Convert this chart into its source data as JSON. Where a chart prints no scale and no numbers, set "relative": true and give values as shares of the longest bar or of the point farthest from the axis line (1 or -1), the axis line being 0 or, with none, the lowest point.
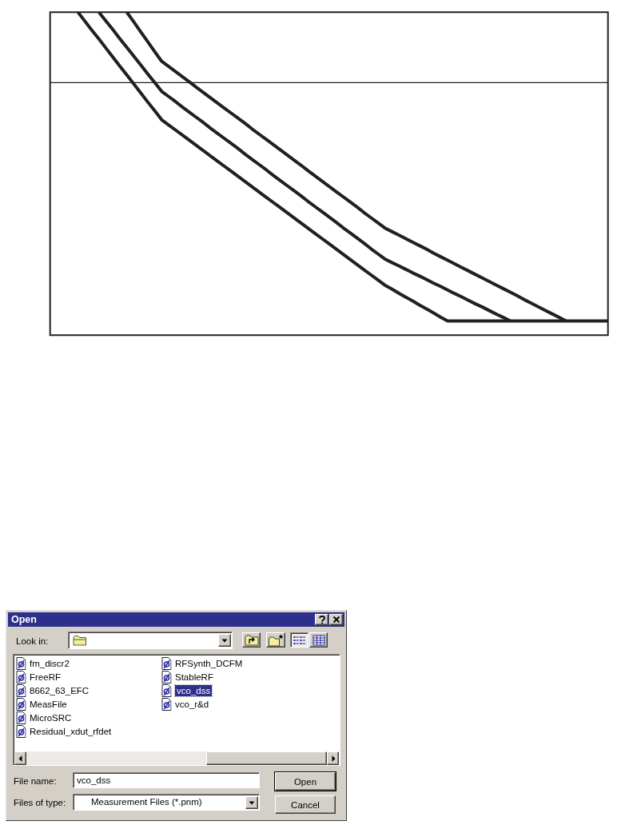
{
  "chart_data": [
    {
      "type": "line",
      "relative": true,
      "marker": "none",
      "categories": [
        null,
        null,
        null,
        null,
        null,
        null,
        null,
        null,
        null,
        null,
        null,
        null,
        null,
        null,
        null,
        null,
        null,
        null,
        null,
        null,
        null,
        null,
        null,
        null,
        null,
        null,
        null,
        null,
        null,
        null,
        null,
        null,
        null,
        null,
        null,
        null,
        null,
        null,
        null,
        null,
        null,
        null,
        null,
        null,
        null,
        null,
        null,
        null,
        null,
        null,
        null,
        null,
        null,
        null,
        null,
        null,
        null,
        null,
        null,
        null,
        null,
        null,
        null,
        null,
        null,
        null,
        null,
        null,
        null,
        null,
        null,
        null,
        null,
        null,
        null,
        null,
        null,
        null,
        null,
        null,
        null
      ],
      "series": [
        {
          "color": "#231f20",
          "values": [
            null,
            null,
            null,
            null,
            1,
            0.972,
            0.944,
            0.917,
            0.889,
            0.861,
            0.833,
            0.806,
            0.778,
            0.75,
            0.722,
            0.695,
            0.667,
            0.651,
            0.635,
            0.619,
            0.603,
            0.587,
            0.571,
            0.555,
            0.539,
            0.523,
            0.507,
            0.491,
            0.475,
            0.459,
            0.443,
            0.427,
            0.411,
            0.395,
            0.379,
            0.363,
            0.347,
            0.331,
            0.315,
            0.299,
            0.283,
            0.267,
            0.251,
            0.235,
            0.219,
            0.203,
            0.187,
            0.171,
            0.155,
            0.143,
            0.13,
            0.118,
            0.106,
            0.093,
            0.081,
            0.069,
            0.056,
            0.044,
            0.044,
            0.044,
            0.044,
            0.044,
            0.044,
            0.044,
            0.044,
            0.044,
            0.044,
            0.044,
            0.044,
            0.044,
            0.044,
            0.044,
            0.044,
            0.044,
            0.044,
            0.044,
            0.044,
            0.044,
            0.044,
            0.044,
            0.044
          ]
        },
        {
          "color": "#231f20",
          "values": [
            null,
            null,
            null,
            null,
            null,
            null,
            null,
            1,
            0.973,
            0.946,
            0.918,
            0.891,
            0.864,
            0.837,
            0.809,
            0.782,
            0.755,
            0.739,
            0.723,
            0.706,
            0.69,
            0.674,
            0.658,
            0.641,
            0.625,
            0.609,
            0.593,
            0.577,
            0.56,
            0.544,
            0.528,
            0.512,
            0.495,
            0.479,
            0.463,
            0.447,
            0.431,
            0.414,
            0.398,
            0.382,
            0.366,
            0.35,
            0.333,
            0.317,
            0.301,
            0.285,
            0.268,
            0.252,
            0.236,
            0.225,
            0.215,
            0.204,
            0.193,
            0.183,
            0.172,
            0.161,
            0.151,
            0.14,
            0.129,
            0.119,
            0.108,
            0.097,
            0.087,
            0.076,
            0.065,
            0.055,
            0.044,
            null,
            null,
            null,
            null,
            null,
            null,
            null,
            null,
            null,
            null,
            null,
            null,
            null,
            null
          ]
        },
        {
          "color": "#231f20",
          "values": [
            null,
            null,
            null,
            null,
            null,
            null,
            null,
            null,
            null,
            null,
            null,
            1,
            0.97,
            0.939,
            0.909,
            0.878,
            0.848,
            0.832,
            0.816,
            0.8,
            0.784,
            0.767,
            0.751,
            0.735,
            0.719,
            0.703,
            0.687,
            0.671,
            0.655,
            0.638,
            0.622,
            0.606,
            0.59,
            0.574,
            0.558,
            0.542,
            0.526,
            0.509,
            0.493,
            0.477,
            0.461,
            0.445,
            0.429,
            0.413,
            0.397,
            0.38,
            0.364,
            0.348,
            0.332,
            0.321,
            0.31,
            0.299,
            0.288,
            0.277,
            0.266,
            0.254,
            0.243,
            0.232,
            0.221,
            0.21,
            0.199,
            0.188,
            0.177,
            0.166,
            0.155,
            0.144,
            0.133,
            0.122,
            0.11,
            0.099,
            0.088,
            0.077,
            0.066,
            0.055,
            0.044,
            null,
            null,
            null,
            null,
            null,
            null
          ]
        }
      ],
      "ref_lines": [
        {
          "axis": "y",
          "value": 0.782,
          "color": "#231f20"
        }
      ]
    },
    {
      "type": "other",
      "title": "Open",
      "annotations": [
        "Look in:",
        "fm_discr2",
        "FreeRF",
        "8662_63_EFC",
        "MeasFile",
        "MicroSRC",
        "Residual_xdut_rfdet",
        "RFSynth_DCFM",
        "StableRF",
        "vco_dss",
        "vco_r&d",
        "File name:",
        "vco_dss",
        "Files of type:",
        "Measurement Files (*.pnm)",
        "Open",
        "Cancel"
      ]
    }
  ]
}
